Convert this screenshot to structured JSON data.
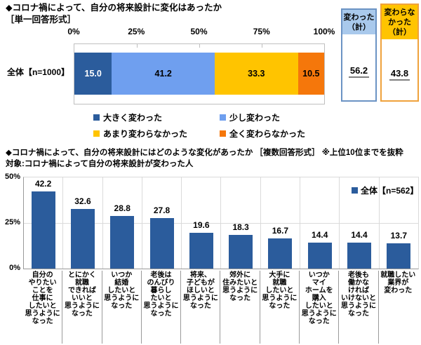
{
  "q1": {
    "title": "◆コロナ禍によって、自分の将来設計に変化はあったか\n［単一回答形式］",
    "row_label": "全体【n=1000】",
    "summary_boxes": [
      {
        "header": "変わった\n（計）",
        "value": "56.2",
        "header_bg": "#A9C9EC",
        "border_color": "#6B93C4"
      },
      {
        "header": "変わらな\nかった\n（計）",
        "value": "43.8",
        "header_bg": "#FFC400",
        "border_color": "#EFA23C"
      }
    ]
  },
  "q2": {
    "title": "◆コロナ禍によって、自分の将来設計にはどのような変化があったか ［複数回答形式］ ※上位10位までを抜粋",
    "target": "対象:コロナ禍によって自分の将来設計が変わった人",
    "legend_label": "全体【n=562】"
  },
  "chart_data": [
    {
      "type": "stacked-bar",
      "orientation": "horizontal",
      "title": "コロナ禍によって、自分の将来設計に変化はあったか（単一回答形式）",
      "categories": [
        "全体【n=1000】"
      ],
      "series": [
        {
          "name": "大きく変わった",
          "values": [
            15.0
          ],
          "color": "#2B5C9C",
          "label_color": "#FFFFFF"
        },
        {
          "name": "少し変わった",
          "values": [
            41.2
          ],
          "color": "#6F9FEF",
          "label_color": "#000000"
        },
        {
          "name": "あまり変わらなかった",
          "values": [
            33.3
          ],
          "color": "#FFC400",
          "label_color": "#000000"
        },
        {
          "name": "全く変わらなかった",
          "values": [
            10.5
          ],
          "color": "#F5770B",
          "label_color": "#000000"
        }
      ],
      "xlim": [
        0,
        100
      ],
      "xticks": [
        "0%",
        "25%",
        "50%",
        "75%",
        "100%"
      ],
      "summary": {
        "変わった（計）": 56.2,
        "変わらなかった（計）": 43.8
      }
    },
    {
      "type": "bar",
      "title": "コロナ禍によって、自分の将来設計にはどのような変化があったか（複数回答形式・上位10位）",
      "categories": [
        "自分の\nやりたい\nことを\n仕事に\nしたいと\n思うように\nなった",
        "とにかく\n就職\nできれば\nいいと\n思うように\nなった",
        "いつか\n結婚\nしたいと\n思うように\nなった",
        "老後は\nのんびり\n暮らし\nたいと\n思うように\nなった",
        "将来、\n子どもが\nほしいと\n思うように\nなった",
        "郊外に\n住みたいと\n思うように\nなった",
        "大手に\n就職\nしたいと\n思うように\nなった",
        "いつか\nマイ\nホームを\n購入\nしたいと\n思うように\nなった",
        "老後も\n働かな\nければ\nいけないと\n思うように\nなった",
        "就職したい\n業界が\n変わった"
      ],
      "values": [
        42.2,
        32.6,
        28.8,
        27.8,
        19.6,
        18.3,
        16.7,
        14.4,
        14.4,
        13.7
      ],
      "ylim": [
        0,
        50
      ],
      "yticks": [
        {
          "label": "50%",
          "value": 50
        },
        {
          "label": "25%",
          "value": 25
        },
        {
          "label": "0%",
          "value": 0
        }
      ],
      "legend": "全体【n=562】",
      "legend_position": "top-right",
      "grid": true,
      "bar_color": "#2B5C9C"
    }
  ]
}
